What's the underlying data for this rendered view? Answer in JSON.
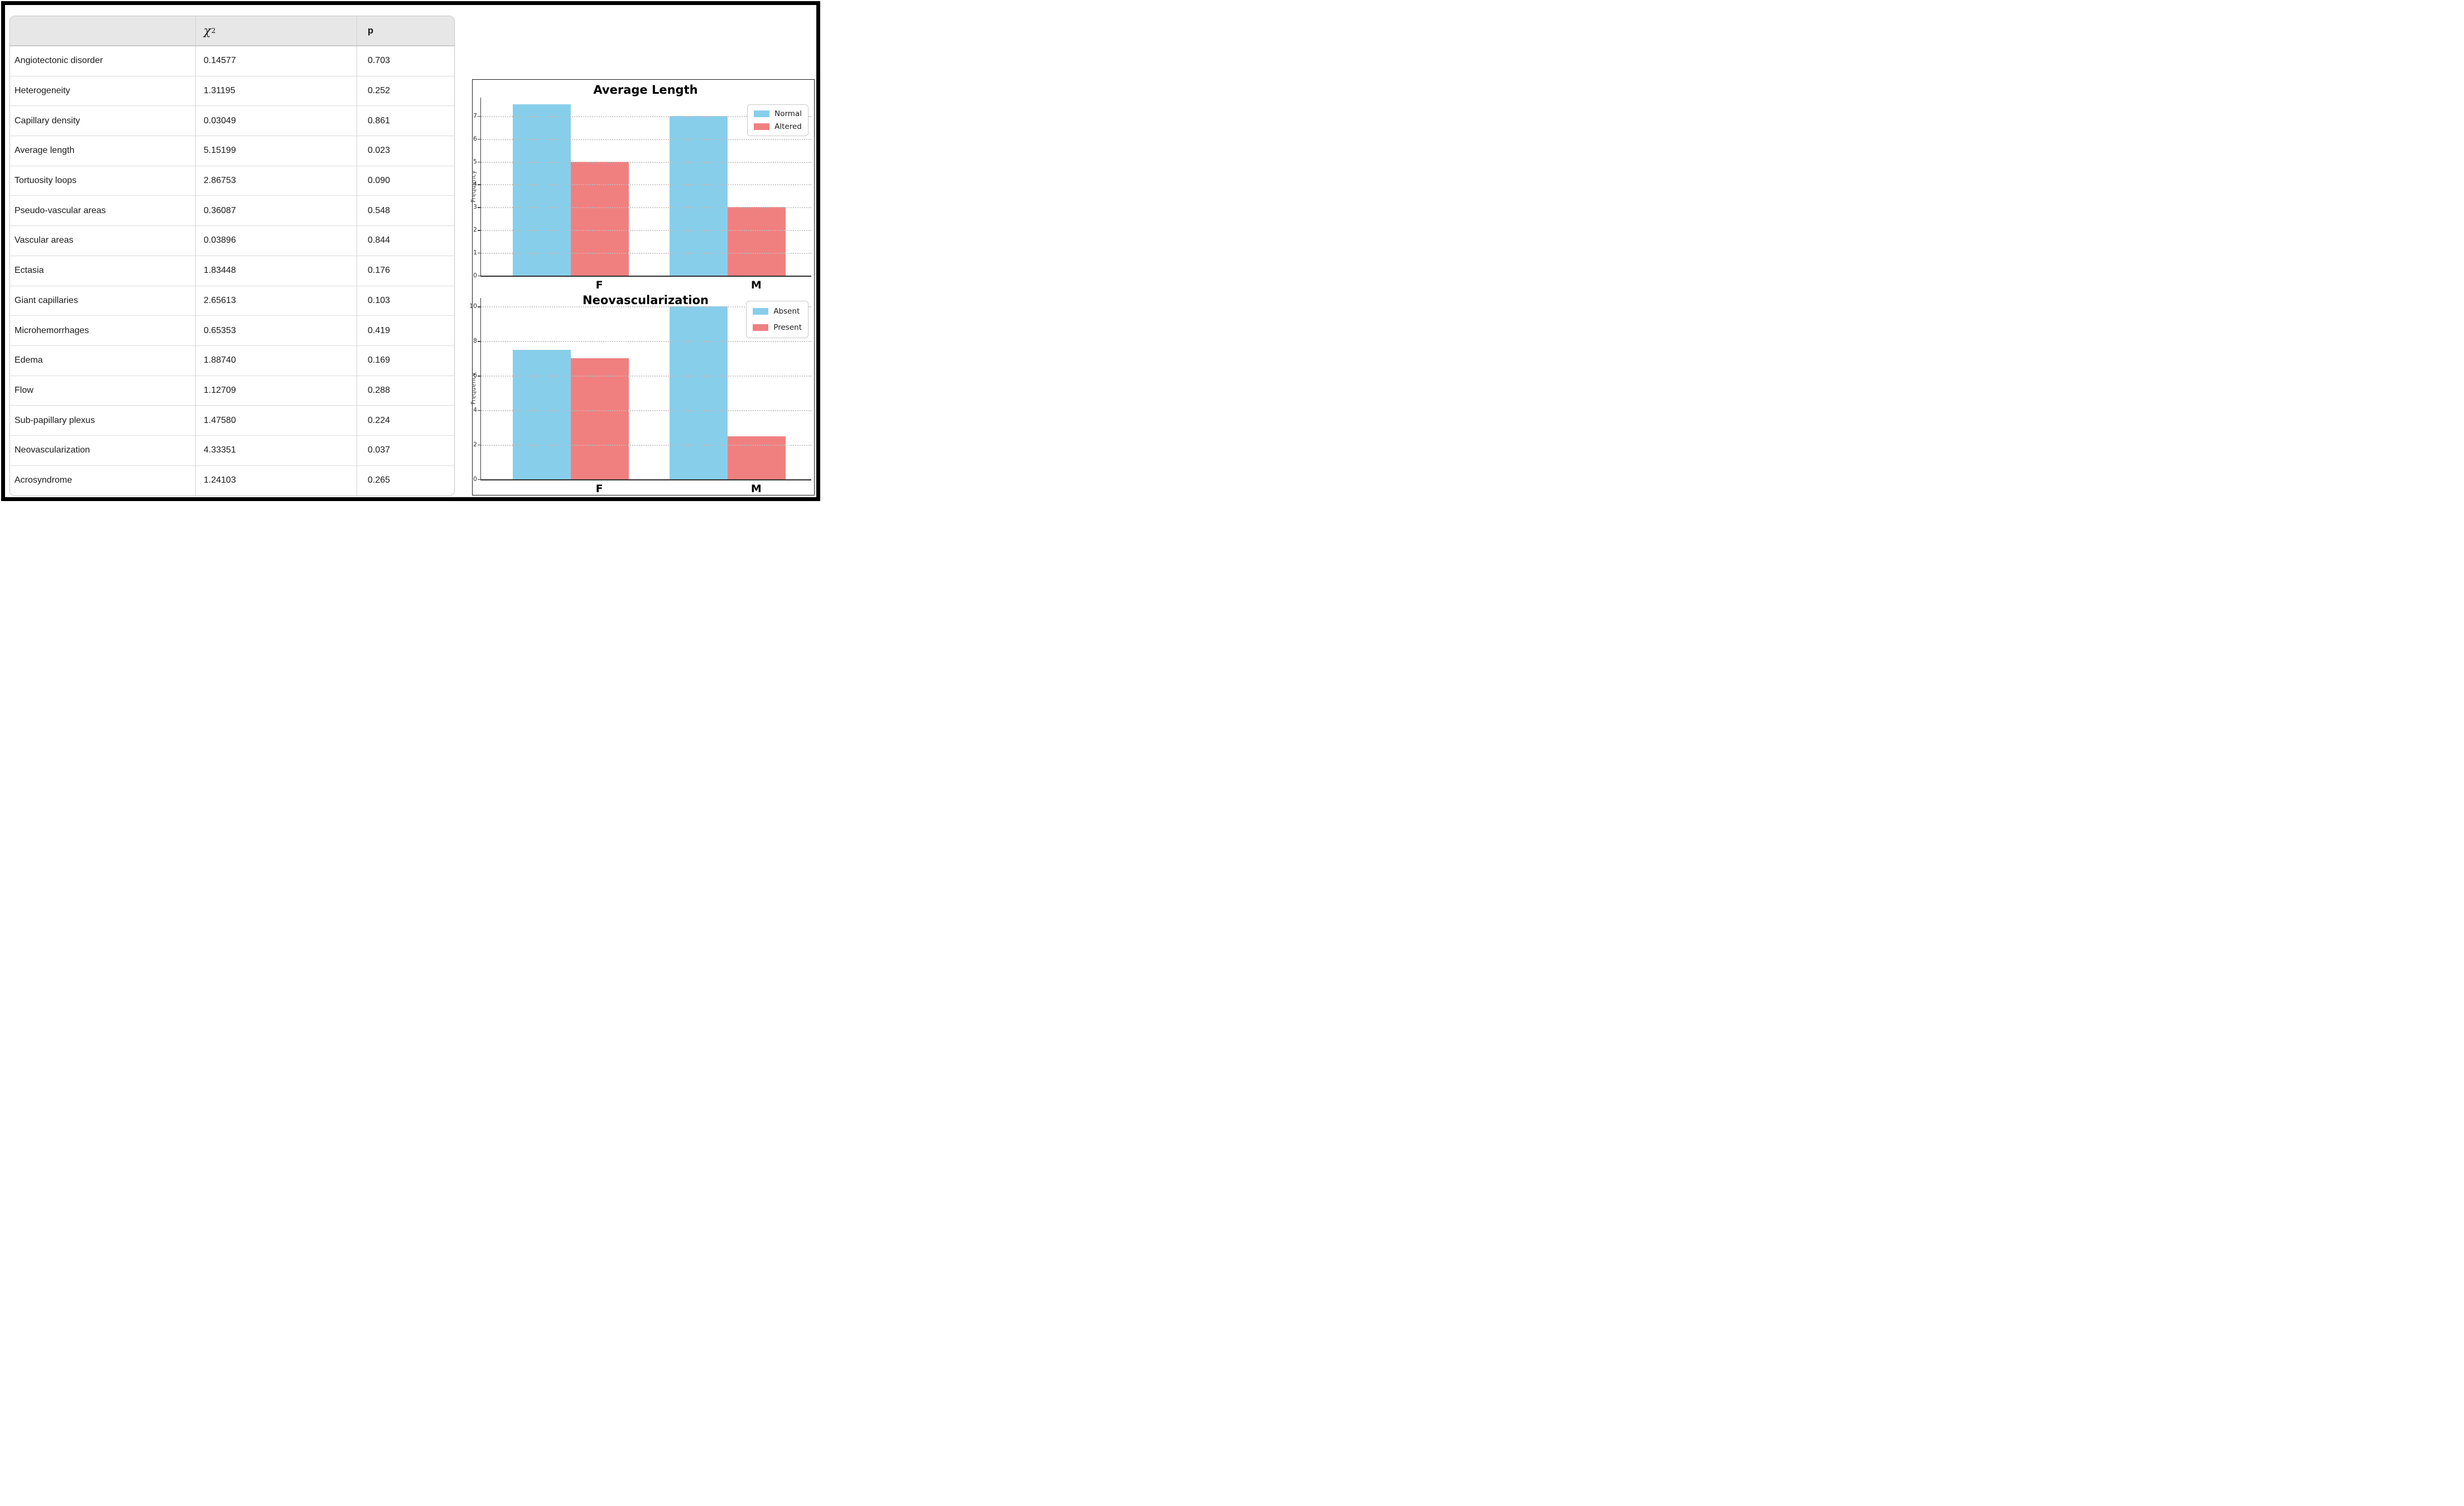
{
  "figure": {
    "table": {
      "col_headers": {
        "empty": "",
        "chi2_symbol": "χ",
        "chi2_sup": "2",
        "p": "p"
      },
      "rows": [
        {
          "label": "Angiotectonic disorder",
          "chi2": "0.14577",
          "p": "0.703"
        },
        {
          "label": "Heterogeneity",
          "chi2": "1.31195",
          "p": "0.252"
        },
        {
          "label": "Capillary density",
          "chi2": "0.03049",
          "p": "0.861"
        },
        {
          "label": "Average length",
          "chi2": "5.15199",
          "p": "0.023"
        },
        {
          "label": "Tortuosity loops",
          "chi2": "2.86753",
          "p": "0.090"
        },
        {
          "label": "Pseudo-vascular areas",
          "chi2": "0.36087",
          "p": "0.548"
        },
        {
          "label": "Vascular areas",
          "chi2": "0.03896",
          "p": "0.844"
        },
        {
          "label": "Ectasia",
          "chi2": "1.83448",
          "p": "0.176"
        },
        {
          "label": "Giant capillaries",
          "chi2": "2.65613",
          "p": "0.103"
        },
        {
          "label": "Microhemorrhages",
          "chi2": "0.65353",
          "p": "0.419"
        },
        {
          "label": "Edema",
          "chi2": "1.88740",
          "p": "0.169"
        },
        {
          "label": "Flow",
          "chi2": "1.12709",
          "p": "0.288"
        },
        {
          "label": "Sub-papillary plexus",
          "chi2": "1.47580",
          "p": "0.224"
        },
        {
          "label": "Neovascularization",
          "chi2": "4.33351",
          "p": "0.037"
        },
        {
          "label": "Acrosyndrome",
          "chi2": "1.24103",
          "p": "0.265"
        }
      ]
    }
  },
  "chart_data": [
    {
      "type": "bar",
      "title": "Average Length",
      "xlabel": "",
      "ylabel": "Frequency",
      "categories": [
        "F",
        "M"
      ],
      "series": [
        {
          "name": "Normal",
          "values": [
            7.5,
            7
          ]
        },
        {
          "name": "Altered",
          "values": [
            5,
            3
          ]
        }
      ],
      "yticks": [
        0,
        1,
        2,
        3,
        4,
        5,
        6,
        7
      ],
      "ylim": [
        0,
        7.8
      ],
      "legend_position": "upper right",
      "grid": "dotted horizontal"
    },
    {
      "type": "bar",
      "title": "Neovascularization",
      "xlabel": "",
      "ylabel": "Frequency",
      "categories": [
        "F",
        "M"
      ],
      "series": [
        {
          "name": "Absent",
          "values": [
            7.5,
            10
          ]
        },
        {
          "name": "Present",
          "values": [
            7,
            2.5
          ]
        }
      ],
      "yticks": [
        0,
        2,
        4,
        6,
        8,
        10
      ],
      "ylim": [
        0,
        10.5
      ],
      "legend_position": "upper right",
      "grid": "dotted horizontal"
    }
  ],
  "colors": {
    "bar_blue": "#87ceeb",
    "bar_red": "#f08080",
    "header_bg": "#e7e7e7",
    "table_border": "#c6c6c6",
    "gridline": "#bdbdbd",
    "frame": "#000000"
  }
}
